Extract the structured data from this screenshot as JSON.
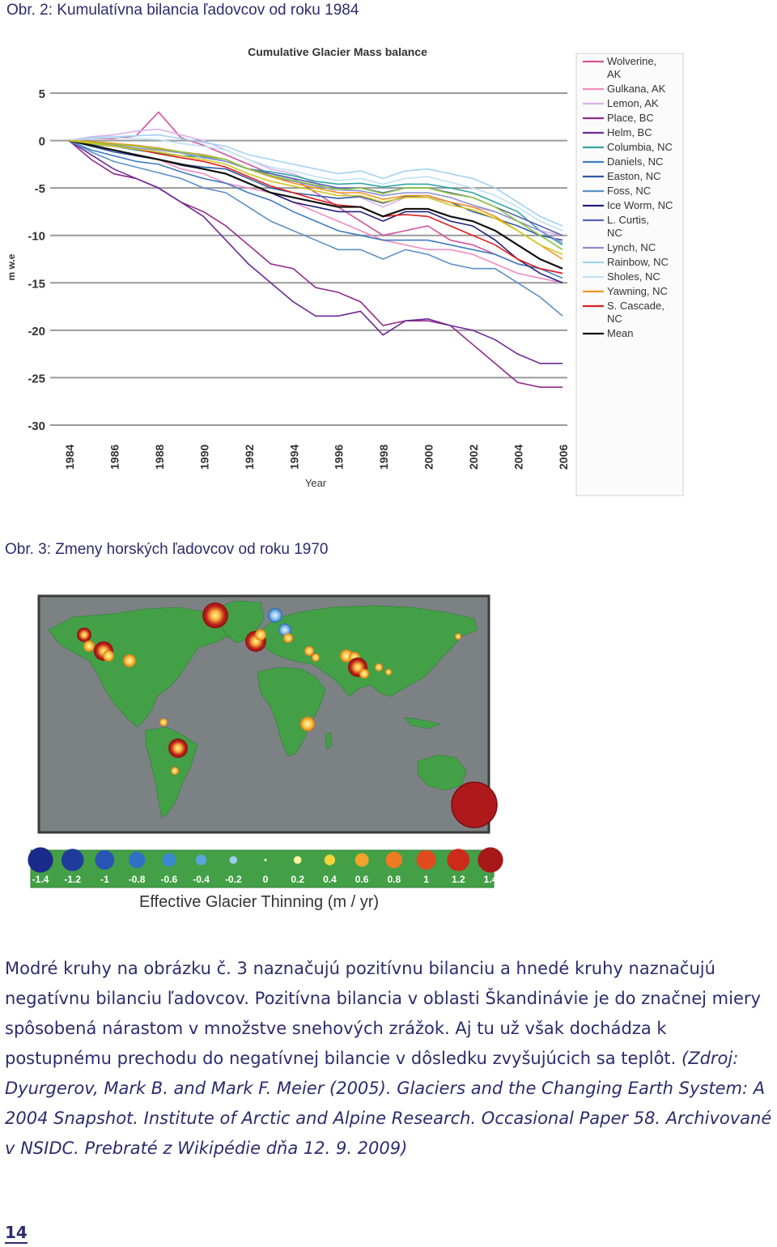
{
  "captions": {
    "fig2": "Obr. 2: Kumulatívna bilancia ľadovcov od roku 1984",
    "fig3": "Obr. 3: Zmeny horských ľadovcov od roku 1970"
  },
  "chart_data": [
    {
      "type": "line",
      "title": "Cumulative Glacier Mass balance",
      "xlabel": "Year",
      "ylabel": "m w.e",
      "ylim": [
        -30,
        5
      ],
      "xlim": [
        1984,
        2006
      ],
      "yticks": [
        "5",
        "0",
        "-5",
        "-10",
        "-15",
        "-20",
        "-25",
        "-30"
      ],
      "xticks": [
        "1984",
        "1986",
        "1988",
        "1990",
        "1992",
        "1994",
        "1996",
        "1998",
        "2000",
        "2002",
        "2004",
        "2006"
      ],
      "grid": "horizontal",
      "legend_position": "right",
      "x": [
        1984,
        1985,
        1986,
        1987,
        1988,
        1989,
        1990,
        1991,
        1992,
        1993,
        1994,
        1995,
        1996,
        1997,
        1998,
        1999,
        2000,
        2001,
        2002,
        2003,
        2004,
        2005,
        2006
      ],
      "series": [
        {
          "name": "Wolverine, AK",
          "color": "#d4529c",
          "values": [
            0,
            0.2,
            0.2,
            0.5,
            3,
            0.3,
            -0.5,
            -1.5,
            -2.5,
            -3.5,
            -4,
            -5.5,
            -7,
            -8.5,
            -10,
            -9.5,
            -9,
            -10.5,
            -11,
            -12,
            -13,
            -13.5,
            -14
          ]
        },
        {
          "name": "Gulkana, AK",
          "color": "#f08cc0",
          "values": [
            0,
            -0.5,
            -1,
            -1.5,
            -2,
            -3,
            -3.5,
            -4.5,
            -5,
            -5.5,
            -6.5,
            -7.5,
            -8.5,
            -9.5,
            -10.5,
            -11,
            -11.5,
            -11.5,
            -12,
            -13,
            -14,
            -14.5,
            -15
          ]
        },
        {
          "name": "Lemon, AK",
          "color": "#d9b0ea",
          "values": [
            0,
            0.4,
            0.6,
            1,
            1.2,
            0.6,
            0,
            -1,
            -2,
            -3,
            -3.5,
            -4.5,
            -5.5,
            -6,
            -7,
            -6,
            -6,
            -6.5,
            -7,
            -7.5,
            -8.5,
            -9.5,
            -10
          ]
        },
        {
          "name": "Place, BC",
          "color": "#902a8c",
          "values": [
            0,
            -2,
            -3.5,
            -4,
            -5,
            -6.5,
            -7.5,
            -9,
            -11,
            -13,
            -13.5,
            -15.5,
            -16,
            -17,
            -19.5,
            -19,
            -19,
            -19.5,
            -21.5,
            -23.5,
            -25.5,
            -26,
            -26
          ]
        },
        {
          "name": "Helm, BC",
          "color": "#6e2a98",
          "values": [
            0,
            -1.5,
            -3,
            -4,
            -5,
            -6.5,
            -8,
            -10.5,
            -13,
            -15,
            -17,
            -18.5,
            -18.5,
            -18,
            -20.5,
            -19,
            -18.8,
            -19.5,
            -20,
            -21,
            -22.5,
            -23.5,
            -23.5
          ]
        },
        {
          "name": "Columbia, NC",
          "color": "#30a6a4",
          "values": [
            0,
            -0.4,
            -0.6,
            -1,
            -1.3,
            -1.6,
            -1.7,
            -2.2,
            -3,
            -3.3,
            -3.7,
            -4.3,
            -4.6,
            -4.5,
            -4.9,
            -4.6,
            -4.6,
            -5,
            -5.5,
            -6.5,
            -7.5,
            -9.5,
            -11
          ]
        },
        {
          "name": "Daniels, NC",
          "color": "#3e7bc0",
          "values": [
            0,
            -1,
            -1.6,
            -2.2,
            -2.5,
            -3.3,
            -4,
            -4.5,
            -5.5,
            -6.3,
            -7.5,
            -8.5,
            -9.5,
            -10,
            -10.5,
            -10.5,
            -10.5,
            -11,
            -11.5,
            -12,
            -13,
            -13.5,
            -14.5
          ]
        },
        {
          "name": "Easton, NC",
          "color": "#2f58a8",
          "values": [
            0,
            -0.6,
            -1.2,
            -1.6,
            -2,
            -2.5,
            -2.8,
            -3,
            -4,
            -5,
            -5.5,
            -5.8,
            -6.1,
            -5.9,
            -6.6,
            -5.9,
            -5.8,
            -6.5,
            -7.5,
            -8.2,
            -9,
            -10,
            -10.5
          ]
        },
        {
          "name": "Foss, NC",
          "color": "#5c90c8",
          "values": [
            0,
            -1.2,
            -2.2,
            -2.8,
            -3.4,
            -4,
            -5,
            -5.5,
            -7,
            -8.5,
            -9.5,
            -10.5,
            -11.5,
            -11.5,
            -12.5,
            -11.5,
            -12,
            -13,
            -13.5,
            -13.5,
            -15,
            -16.5,
            -18.5
          ]
        },
        {
          "name": "Ice Worm, NC",
          "color": "#20207a",
          "values": [
            0,
            -0.5,
            -1,
            -1.6,
            -2,
            -2.6,
            -3,
            -3.5,
            -4.5,
            -5.5,
            -6.5,
            -7,
            -7.5,
            -7.5,
            -8.5,
            -7.5,
            -7.5,
            -8.5,
            -9,
            -10.5,
            -12.5,
            -14,
            -15
          ]
        },
        {
          "name": "L. Curtis, NC",
          "color": "#5a62b6",
          "values": [
            0,
            -0.2,
            -0.4,
            -0.6,
            -0.8,
            -1.2,
            -1.5,
            -2,
            -3,
            -3.5,
            -4,
            -4.5,
            -5,
            -5,
            -5.5,
            -5,
            -5,
            -5.5,
            -6,
            -7,
            -8,
            -9,
            -10
          ]
        },
        {
          "name": "Lynch, NC",
          "color": "#8f8ed2",
          "values": [
            0,
            -0.3,
            -0.5,
            -0.8,
            -1,
            -1.3,
            -1.8,
            -2.2,
            -3,
            -3.8,
            -4.3,
            -4.8,
            -5.2,
            -5.3,
            -5.8,
            -5.5,
            -5.5,
            -6,
            -6.8,
            -7.5,
            -8.5,
            -9.5,
            -10.8
          ]
        },
        {
          "name": "Rainbow, NC",
          "color": "#a4d2f0",
          "values": [
            0,
            0.3,
            0.4,
            0.5,
            0.6,
            0.2,
            -0.2,
            -0.6,
            -1.5,
            -2,
            -2.5,
            -3,
            -3.5,
            -3.2,
            -4,
            -3.2,
            -3,
            -3.5,
            -4,
            -5,
            -6.5,
            -8,
            -9
          ]
        },
        {
          "name": "Sholes, NC",
          "color": "#bfe0f2",
          "values": [
            0,
            0.2,
            0.3,
            0.2,
            0.1,
            -0.3,
            -0.6,
            -1,
            -2,
            -2.8,
            -3.2,
            -3.8,
            -4.2,
            -4,
            -4.6,
            -4,
            -3.8,
            -4.4,
            -5,
            -5.8,
            -7,
            -8.5,
            -9.5
          ]
        },
        {
          "name": "Yawning, NC",
          "color": "#f5941e",
          "values": [
            0,
            -0.1,
            -0.3,
            -0.5,
            -0.8,
            -1.2,
            -1.5,
            -2,
            -3,
            -3.8,
            -4.5,
            -5,
            -5.5,
            -5.5,
            -6.2,
            -5.8,
            -5.8,
            -6.5,
            -7,
            -8,
            -9.5,
            -11,
            -12.5
          ]
        },
        {
          "name": "S. Cascade, NC",
          "color": "#e01d1d",
          "values": [
            0,
            -0.3,
            -0.6,
            -0.9,
            -1.4,
            -1.8,
            -2.2,
            -2.8,
            -3.8,
            -4.8,
            -5.5,
            -6.2,
            -6.8,
            -7,
            -8,
            -7.8,
            -8,
            -9,
            -10,
            -11,
            -12.5,
            -13.5,
            -14
          ]
        },
        {
          "name": "Mean",
          "color": "#111111",
          "values": [
            0,
            -0.5,
            -1,
            -1.5,
            -2,
            -2.5,
            -3,
            -3.5,
            -4.5,
            -5.5,
            -6,
            -6.5,
            -7,
            -7,
            -8,
            -7.2,
            -7.2,
            -8,
            -8.5,
            -9.5,
            -11,
            -12.5,
            -13.5
          ]
        },
        {
          "name": "",
          "color": "#8cc63e",
          "values": [
            0,
            -0.2,
            -0.4,
            -0.6,
            -0.9,
            -1.2,
            -1.6,
            -2,
            -3,
            -3.7,
            -4.2,
            -4.7,
            -5.2,
            -5,
            -5.6,
            -5,
            -5,
            -5.6,
            -6,
            -7,
            -8.5,
            -10,
            -11.5
          ]
        },
        {
          "name": "",
          "color": "#d0c820",
          "values": [
            0,
            -0.3,
            -0.6,
            -0.9,
            -1.2,
            -1.6,
            -2,
            -2.5,
            -3.5,
            -4.3,
            -4.8,
            -5.3,
            -5.8,
            -5.8,
            -6.5,
            -6,
            -6,
            -6.8,
            -7.3,
            -8.2,
            -9.5,
            -11,
            -12
          ]
        }
      ]
    },
    {
      "type": "map",
      "title": "Effective Glacier Thinning (m / yr)",
      "colorbar_ticks": [
        "-1.4",
        "-1.2",
        "-1",
        "-0.8",
        "-0.6",
        "-0.4",
        "-0.2",
        "0",
        "0.2",
        "0.4",
        "0.6",
        "0.8",
        "1",
        "1.2",
        "1.4"
      ]
    }
  ],
  "body": {
    "paragraph_plain": "Modré kruhy na obrázku č. 3 naznačujú pozitívnu bilanciu a hnedé kruhy naznačujú negatívnu bilanciu ľadovcov. Pozitívna bilancia v oblasti Škandinávie je do značnej miery spôsobená nárastom v množstve snehových zrážok. Aj tu už však dochádza k postupnému prechodu do negatívnej bilancie v dôsledku zvyšujúcich sa teplôt. ",
    "paragraph_italic": "(Zdroj: Dyurgerov, Mark B. and Mark F. Meier (2005). Glaciers and the Changing Earth System: A 2004 Snapshot. Institute of Arctic and Alpine Research. Occasional Paper 58. Archivované v NSIDC. Prebraté z Wikipédie dňa 12. 9. 2009)"
  },
  "page_number": "14"
}
